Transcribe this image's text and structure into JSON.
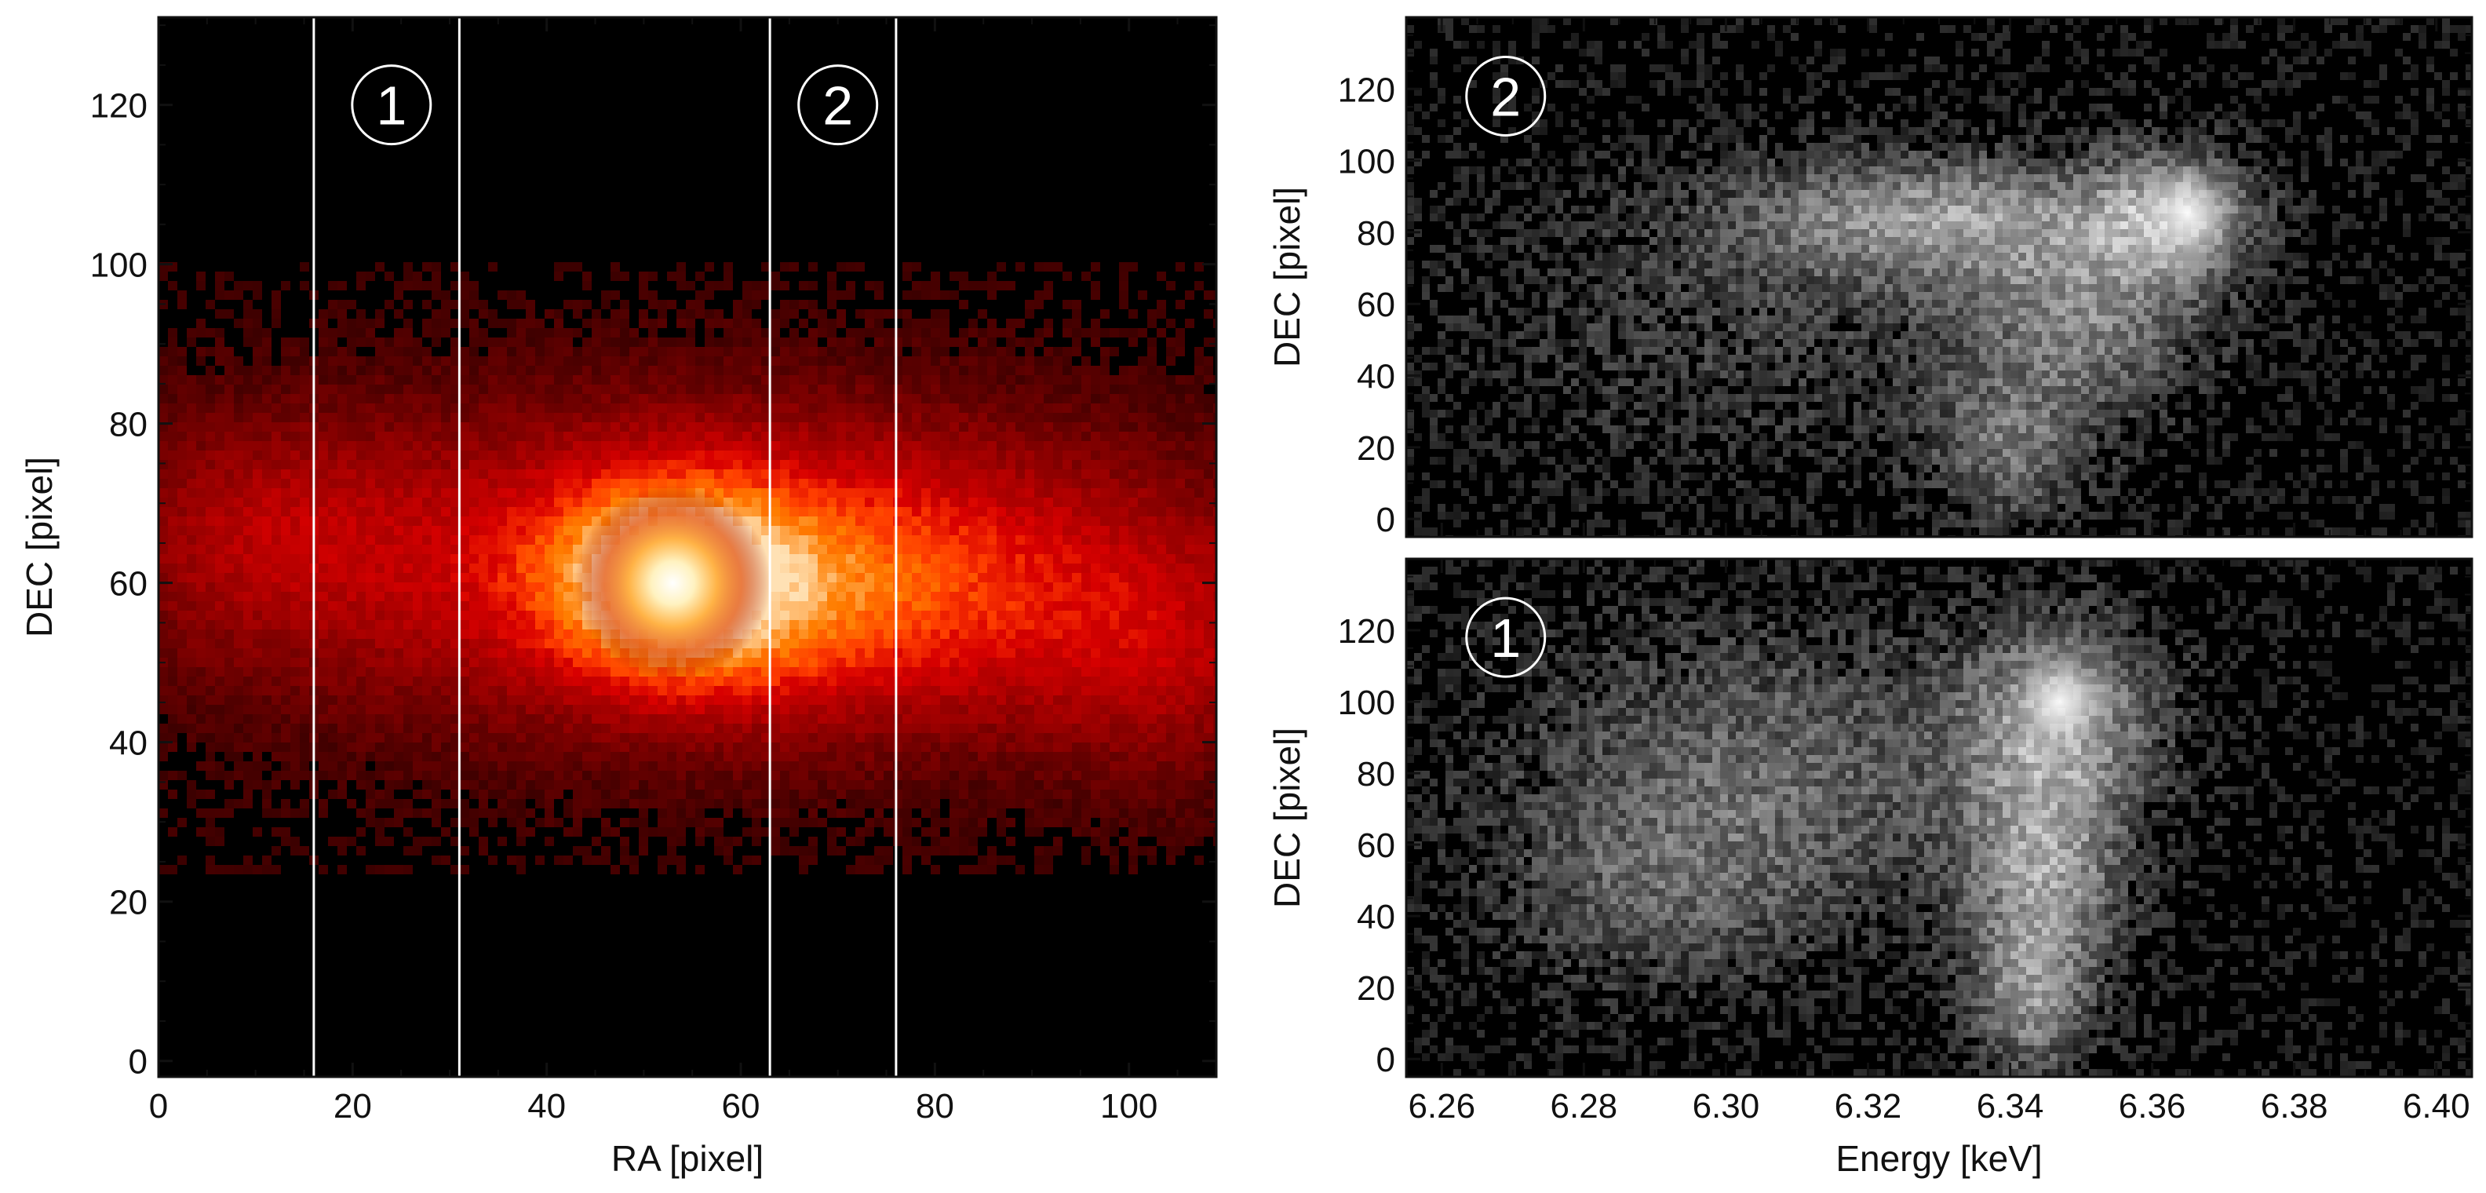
{
  "chart_data": [
    {
      "type": "heatmap",
      "panel": "ra-dec-image",
      "colormap": "red-temperature",
      "xlabel": "RA [pixel]",
      "ylabel": "DEC [pixel]",
      "xlim": [
        0,
        109
      ],
      "ylim": [
        -2,
        131
      ],
      "xticks": [
        0,
        20,
        40,
        60,
        80,
        100
      ],
      "yticks": [
        0,
        20,
        40,
        60,
        80,
        100,
        120
      ],
      "bright_core": {
        "ra": 53,
        "dec": 60
      },
      "data_dec_floor": 21,
      "slit_lines_ra": [
        16,
        31,
        63,
        76
      ],
      "regions": [
        {
          "label": "1",
          "ra": 24,
          "dec": 120
        },
        {
          "label": "2",
          "ra": 70,
          "dec": 120
        }
      ]
    },
    {
      "type": "heatmap",
      "panel": "energy-dec-region-2",
      "colormap": "gray",
      "xlabel": "",
      "ylabel": "DEC [pixel]",
      "xlim": [
        6.255,
        6.405
      ],
      "ylim": [
        -5,
        140
      ],
      "xticks": [
        6.26,
        6.28,
        6.3,
        6.32,
        6.34,
        6.36,
        6.38,
        6.4
      ],
      "yticks": [
        0,
        20,
        40,
        60,
        80,
        100,
        120
      ],
      "region_label": "2",
      "label_position": {
        "energy": 6.269,
        "dec": 118
      },
      "bright_spot": {
        "energy": 6.365,
        "dec": 85
      }
    },
    {
      "type": "heatmap",
      "panel": "energy-dec-region-1",
      "colormap": "gray",
      "xlabel": "Energy [keV]",
      "ylabel": "DEC [pixel]",
      "xlim": [
        6.255,
        6.405
      ],
      "ylim": [
        -5,
        140
      ],
      "xticks": [
        6.26,
        6.28,
        6.3,
        6.32,
        6.34,
        6.36,
        6.38,
        6.4
      ],
      "yticks": [
        0,
        20,
        40,
        60,
        80,
        100,
        120
      ],
      "region_label": "1",
      "label_position": {
        "energy": 6.269,
        "dec": 118
      },
      "bright_spot": {
        "energy": 6.347,
        "dec": 100
      }
    }
  ]
}
